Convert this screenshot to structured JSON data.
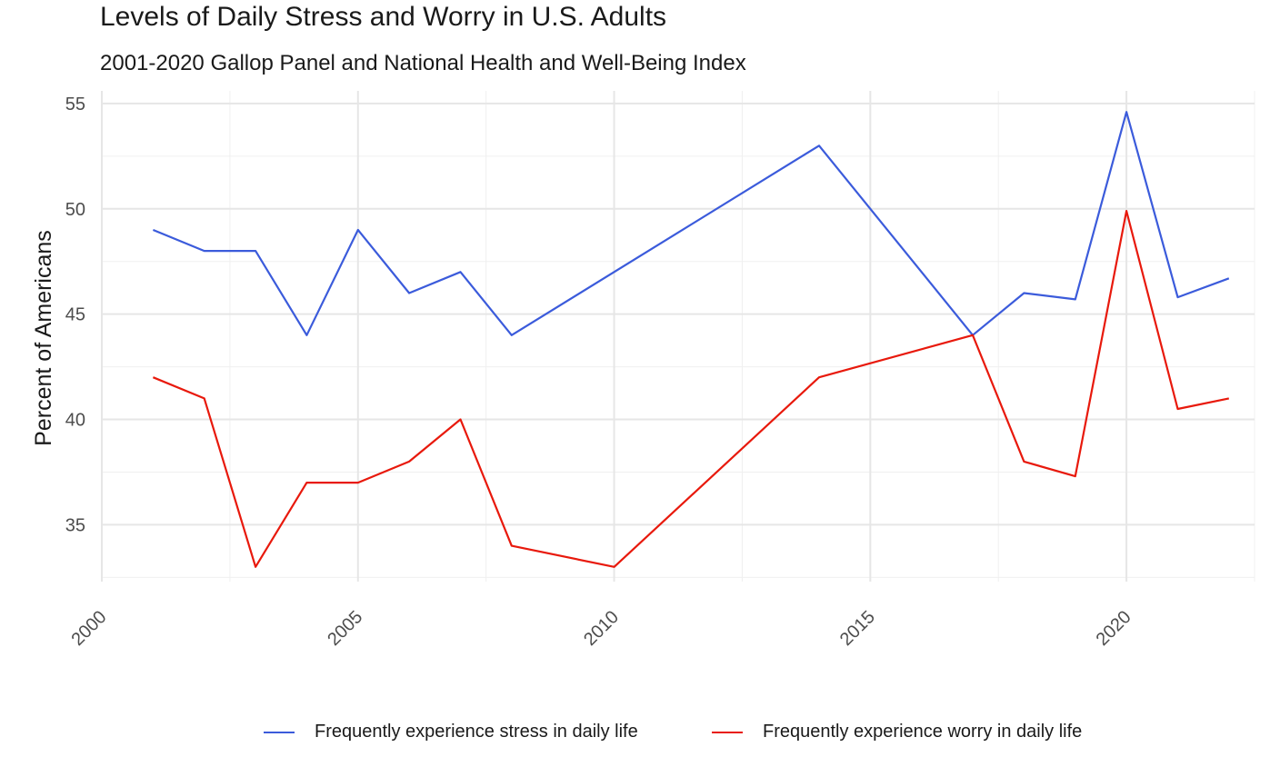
{
  "chart_data": {
    "type": "line",
    "title": "Levels of Daily Stress and Worry in U.S. Adults",
    "subtitle": "2001-2020 Gallop Panel and National Health and Well-Being Index",
    "xlabel": "",
    "ylabel": "Percent of Americans",
    "xlim": [
      2000,
      2022.5
    ],
    "ylim": [
      32.3,
      55.6
    ],
    "xticks": [
      2000,
      2005,
      2010,
      2015,
      2020
    ],
    "yticks": [
      35,
      40,
      45,
      50,
      55
    ],
    "grid": true,
    "legend_position": "bottom",
    "series": [
      {
        "name": "Frequently experience stress in daily life",
        "color": "#3b5bdb",
        "x": [
          2001,
          2002,
          2003,
          2004,
          2005,
          2006,
          2007,
          2008,
          2014,
          2017,
          2018,
          2019,
          2020,
          2021,
          2022
        ],
        "y": [
          49,
          48,
          48,
          44,
          49,
          46,
          47,
          44,
          53,
          44,
          46,
          45.7,
          54.6,
          45.8,
          46.7
        ]
      },
      {
        "name": "Frequently experience worry in daily life",
        "color": "#e8190c",
        "x": [
          2001,
          2002,
          2003,
          2004,
          2005,
          2006,
          2007,
          2008,
          2010,
          2014,
          2017,
          2018,
          2019,
          2020,
          2021,
          2022
        ],
        "y": [
          42,
          41,
          33,
          37,
          37,
          38,
          40,
          34,
          33,
          42,
          44,
          38,
          37.3,
          49.9,
          40.5,
          41
        ]
      }
    ]
  }
}
